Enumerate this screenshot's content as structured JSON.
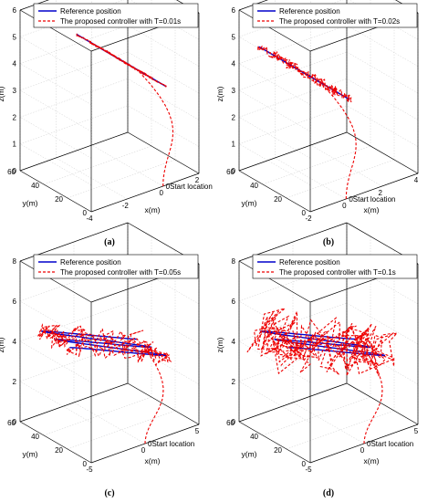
{
  "chart_data": [
    {
      "type": "line",
      "caption": "(a)",
      "legend": [
        "Reference position",
        "The proposed controller  with T=0.01s"
      ],
      "annotation": "Start location",
      "xlabel": "x(m)",
      "ylabel": "y(m)",
      "zlabel": "z(m)",
      "xticks": [
        "-4",
        "-2",
        "0",
        "2"
      ],
      "yticks": [
        "0",
        "20",
        "40",
        "60"
      ],
      "zticks": [
        "0",
        "1",
        "2",
        "3",
        "4",
        "5",
        "6"
      ],
      "xlim": [
        -4,
        2
      ],
      "ylim": [
        0,
        60
      ],
      "zlim": [
        0,
        6
      ],
      "noise": 0.04,
      "colors": {
        "reference": "#0000cc",
        "controller": "#ee0000"
      }
    },
    {
      "type": "line",
      "caption": "(b)",
      "legend": [
        "Reference position",
        "The proposed controller  with T=0.02s"
      ],
      "annotation": "Start location",
      "xlabel": "x(m)",
      "ylabel": "y(m)",
      "zlabel": "z(m)",
      "xticks": [
        "-2",
        "0",
        "2",
        "4"
      ],
      "yticks": [
        "0",
        "20",
        "40",
        "60"
      ],
      "zticks": [
        "0",
        "1",
        "2",
        "3",
        "4",
        "5",
        "6"
      ],
      "xlim": [
        -2,
        4
      ],
      "ylim": [
        0,
        60
      ],
      "zlim": [
        0,
        6
      ],
      "noise": 0.2,
      "colors": {
        "reference": "#0000cc",
        "controller": "#ee0000"
      }
    },
    {
      "type": "line",
      "caption": "(c)",
      "legend": [
        "Reference position",
        "The proposed controller  with T=0.05s"
      ],
      "annotation": "Start location",
      "xlabel": "x(m)",
      "ylabel": "y(m)",
      "zlabel": "z(m)",
      "xticks": [
        "-5",
        "0",
        "5"
      ],
      "yticks": [
        "0",
        "20",
        "40",
        "60"
      ],
      "zticks": [
        "0",
        "2",
        "4",
        "6",
        "8"
      ],
      "xlim": [
        -5,
        5
      ],
      "ylim": [
        0,
        60
      ],
      "zlim": [
        0,
        8
      ],
      "noise": 0.55,
      "colors": {
        "reference": "#0000cc",
        "controller": "#ee0000"
      }
    },
    {
      "type": "line",
      "caption": "(d)",
      "legend": [
        "Reference position",
        "The proposed controller  with T=0.1s"
      ],
      "annotation": "Start location",
      "xlabel": "x(m)",
      "ylabel": "y(m)",
      "zlabel": "z(m)",
      "xticks": [
        "-5",
        "0",
        "5"
      ],
      "yticks": [
        "0",
        "20",
        "40",
        "60"
      ],
      "zticks": [
        "0",
        "2",
        "4",
        "6",
        "8"
      ],
      "xlim": [
        -5,
        5
      ],
      "ylim": [
        0,
        60
      ],
      "zlim": [
        0,
        8
      ],
      "noise": 1.3,
      "colors": {
        "reference": "#0000cc",
        "controller": "#ee0000"
      }
    }
  ]
}
